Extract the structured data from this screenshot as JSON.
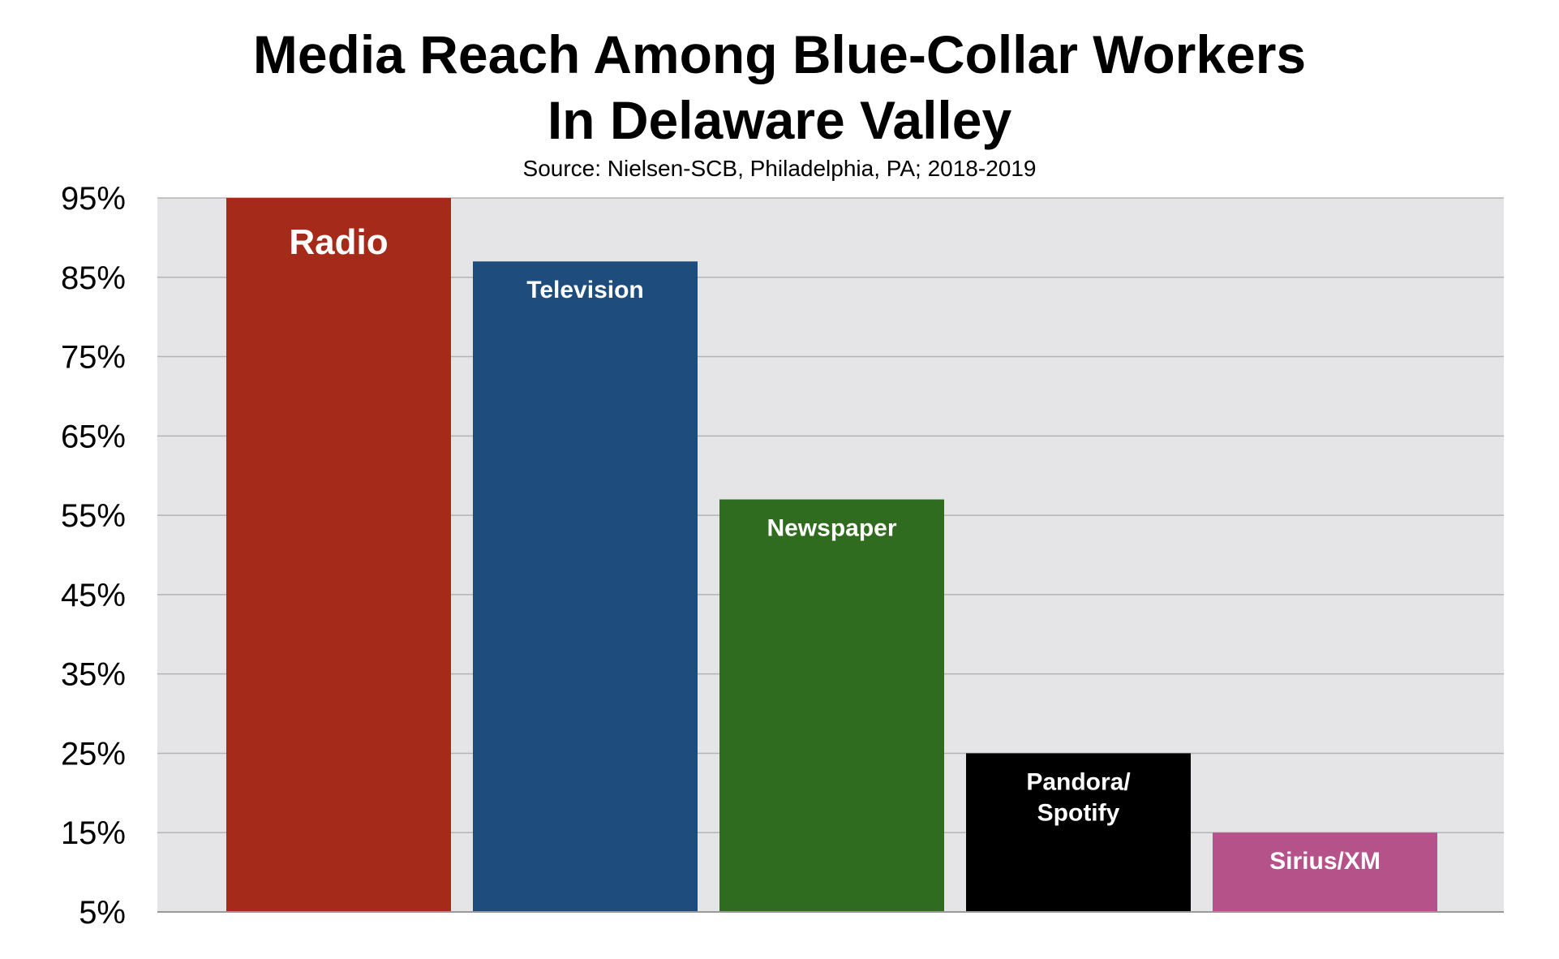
{
  "chart_data": {
    "type": "bar",
    "title": [
      "Media Reach Among Blue-Collar Workers",
      "In Delaware Valley"
    ],
    "subtitle": "Source: Nielsen-SCB, Philadelphia, PA; 2018-2019",
    "categories": [
      "Radio",
      "Television",
      "Newspaper",
      "Pandora/ Spotify",
      "Sirius/XM"
    ],
    "values": [
      95,
      87,
      57,
      25,
      15
    ],
    "bar_labels": [
      [
        "Radio"
      ],
      [
        "Television"
      ],
      [
        "Newspaper"
      ],
      [
        "Pandora/",
        "Spotify"
      ],
      [
        "Sirius/XM"
      ]
    ],
    "colors": [
      "#a52a19",
      "#1e4c7c",
      "#2f6c1f",
      "#000000",
      "#b55289"
    ],
    "ylim": [
      5,
      95
    ],
    "yticks": [
      5,
      15,
      25,
      35,
      45,
      55,
      65,
      75,
      85,
      95
    ],
    "ytick_labels": [
      "5%",
      "15%",
      "25%",
      "35%",
      "45%",
      "55%",
      "65%",
      "75%",
      "85%",
      "95%"
    ],
    "grid": true,
    "xlabel": "",
    "ylabel": ""
  }
}
